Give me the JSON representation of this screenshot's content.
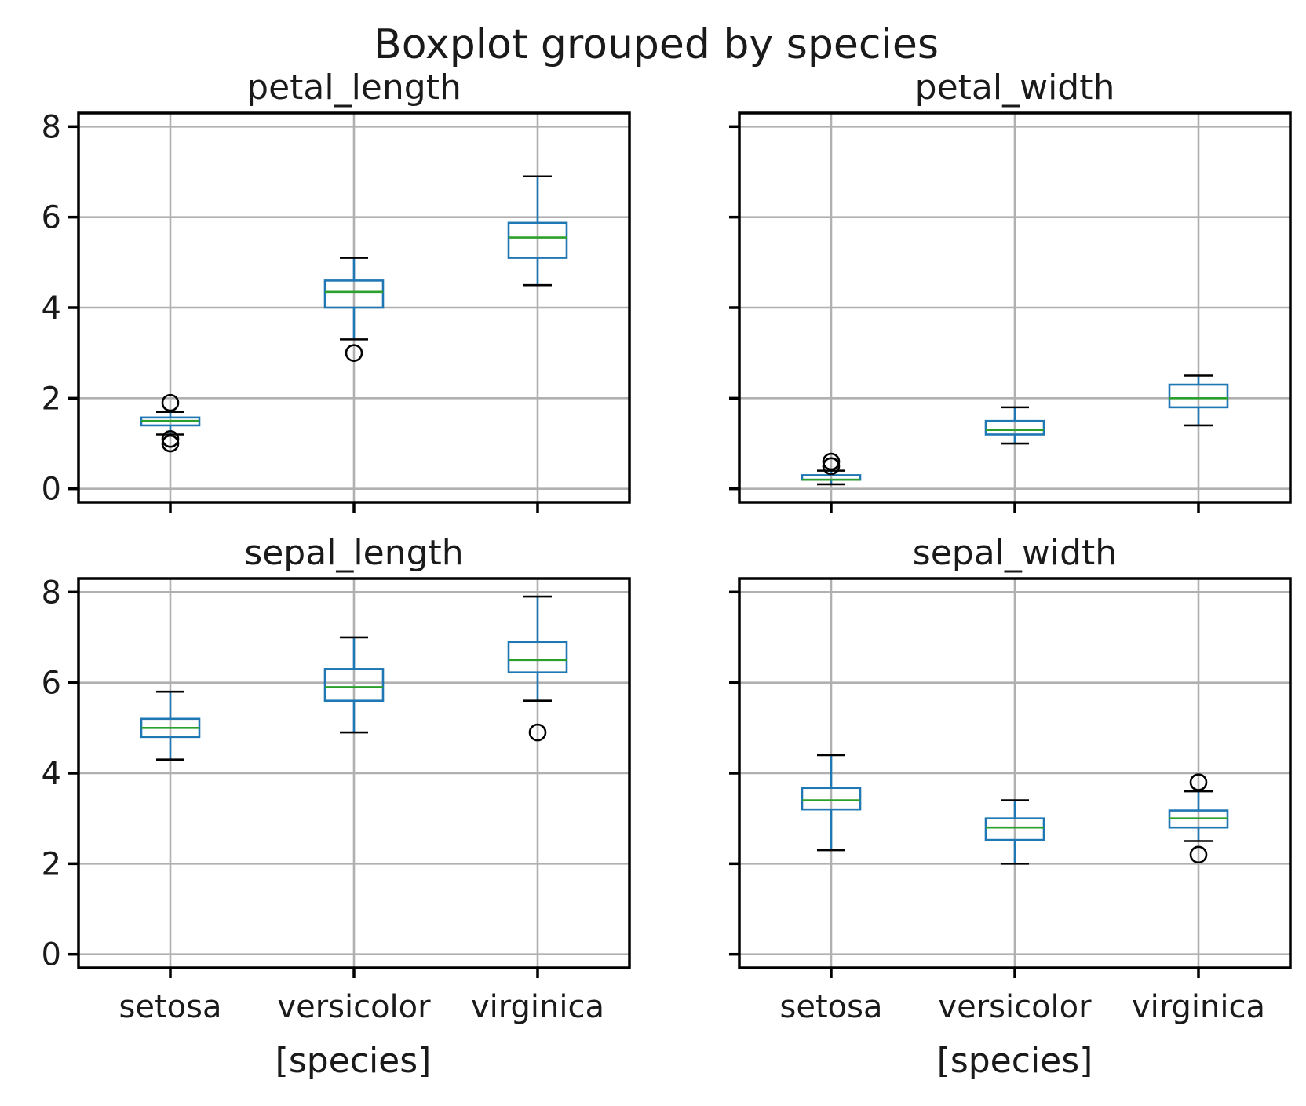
{
  "figure": {
    "title": "Boxplot grouped by species",
    "xlabel": "[species]"
  },
  "colors": {
    "box": "#1f77b4",
    "median": "#2ca02c",
    "whisker": "#1f77b4",
    "cap": "#000000",
    "flier": "#000000",
    "grid": "#b0b0b0",
    "axes": "#000000"
  },
  "chart_data": [
    {
      "type": "box",
      "title": "petal_length",
      "categories": [
        "setosa",
        "versicolor",
        "virginica"
      ],
      "ylim": [
        -0.3,
        8.3
      ],
      "yticks": [
        0,
        2,
        4,
        6,
        8
      ],
      "grid": true,
      "boxes": [
        {
          "whislo": 1.2,
          "q1": 1.4,
          "med": 1.5,
          "q3": 1.575,
          "whishi": 1.7,
          "fliers": [
            1.0,
            1.1,
            1.9
          ]
        },
        {
          "whislo": 3.3,
          "q1": 4.0,
          "med": 4.35,
          "q3": 4.6,
          "whishi": 5.1,
          "fliers": [
            3.0
          ]
        },
        {
          "whislo": 4.5,
          "q1": 5.1,
          "med": 5.55,
          "q3": 5.875,
          "whishi": 6.9,
          "fliers": []
        }
      ]
    },
    {
      "type": "box",
      "title": "petal_width",
      "categories": [
        "setosa",
        "versicolor",
        "virginica"
      ],
      "ylim": [
        -0.3,
        8.3
      ],
      "yticks": [
        0,
        2,
        4,
        6,
        8
      ],
      "grid": true,
      "boxes": [
        {
          "whislo": 0.1,
          "q1": 0.2,
          "med": 0.2,
          "q3": 0.3,
          "whishi": 0.4,
          "fliers": [
            0.5,
            0.6
          ]
        },
        {
          "whislo": 1.0,
          "q1": 1.2,
          "med": 1.3,
          "q3": 1.5,
          "whishi": 1.8,
          "fliers": []
        },
        {
          "whislo": 1.4,
          "q1": 1.8,
          "med": 2.0,
          "q3": 2.3,
          "whishi": 2.5,
          "fliers": []
        }
      ]
    },
    {
      "type": "box",
      "title": "sepal_length",
      "categories": [
        "setosa",
        "versicolor",
        "virginica"
      ],
      "ylim": [
        -0.3,
        8.3
      ],
      "yticks": [
        0,
        2,
        4,
        6,
        8
      ],
      "grid": true,
      "boxes": [
        {
          "whislo": 4.3,
          "q1": 4.8,
          "med": 5.0,
          "q3": 5.2,
          "whishi": 5.8,
          "fliers": []
        },
        {
          "whislo": 4.9,
          "q1": 5.6,
          "med": 5.9,
          "q3": 6.3,
          "whishi": 7.0,
          "fliers": []
        },
        {
          "whislo": 5.6,
          "q1": 6.225,
          "med": 6.5,
          "q3": 6.9,
          "whishi": 7.9,
          "fliers": [
            4.9
          ]
        }
      ]
    },
    {
      "type": "box",
      "title": "sepal_width",
      "categories": [
        "setosa",
        "versicolor",
        "virginica"
      ],
      "ylim": [
        -0.3,
        8.3
      ],
      "yticks": [
        0,
        2,
        4,
        6,
        8
      ],
      "grid": true,
      "boxes": [
        {
          "whislo": 2.3,
          "q1": 3.2,
          "med": 3.4,
          "q3": 3.675,
          "whishi": 4.4,
          "fliers": []
        },
        {
          "whislo": 2.0,
          "q1": 2.525,
          "med": 2.8,
          "q3": 3.0,
          "whishi": 3.4,
          "fliers": []
        },
        {
          "whislo": 2.5,
          "q1": 2.8,
          "med": 3.0,
          "q3": 3.175,
          "whishi": 3.6,
          "fliers": [
            2.2,
            3.8
          ]
        }
      ]
    }
  ]
}
